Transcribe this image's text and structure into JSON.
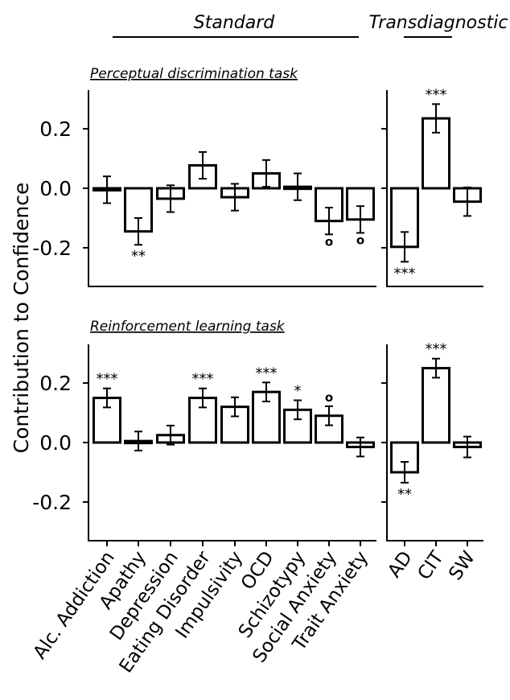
{
  "figure": {
    "group_standard": "Standard",
    "group_transdiagnostic": "Transdiagnostic",
    "ylabel": "Contribution to Confidence"
  },
  "chart_data": [
    {
      "type": "bar",
      "panel": "top",
      "title": "Perceptual discrimination task",
      "ylabel": "Contribution to Confidence",
      "ylim": [
        -0.33,
        0.33
      ],
      "yticks": [
        0.2,
        0.0,
        -0.2
      ],
      "ytick_labels": [
        "0.2",
        "0.0",
        "-0.2"
      ],
      "standard": {
        "categories": [
          "Alc. Addiction",
          "Apathy",
          "Depression",
          "Eating Disorder",
          "Impulsivity",
          "OCD",
          "Schizotypy",
          "Social Anxiety",
          "Trait Anxiety"
        ],
        "values": [
          -0.005,
          -0.145,
          -0.035,
          0.077,
          -0.03,
          0.05,
          0.005,
          -0.11,
          -0.105
        ],
        "errors": [
          0.045,
          0.045,
          0.045,
          0.045,
          0.045,
          0.045,
          0.045,
          0.045,
          0.045
        ],
        "annotations": [
          "",
          "**",
          "",
          "",
          "",
          "",
          "",
          "o",
          "o"
        ]
      },
      "transdiagnostic": {
        "categories": [
          "AD",
          "CIT",
          "SW"
        ],
        "values": [
          -0.197,
          0.235,
          -0.045
        ],
        "errors": [
          0.05,
          0.048,
          0.048
        ],
        "annotations": [
          "***",
          "***",
          ""
        ]
      }
    },
    {
      "type": "bar",
      "panel": "bottom",
      "title": "Reinforcement learning task",
      "ylabel": "Contribution to Confidence",
      "ylim": [
        -0.33,
        0.33
      ],
      "yticks": [
        0.2,
        0.0,
        -0.2
      ],
      "ytick_labels": [
        "0.2",
        "0.0",
        "-0.2"
      ],
      "standard": {
        "categories": [
          "Alc. Addiction",
          "Apathy",
          "Depression",
          "Eating Disorder",
          "Impulsivity",
          "OCD",
          "Schizotypy",
          "Social Anxiety",
          "Trait Anxiety"
        ],
        "values": [
          0.15,
          0.005,
          0.025,
          0.15,
          0.12,
          0.17,
          0.11,
          0.09,
          -0.015
        ],
        "errors": [
          0.032,
          0.032,
          0.032,
          0.032,
          0.032,
          0.032,
          0.032,
          0.032,
          0.032
        ],
        "annotations": [
          "***",
          "",
          "",
          "***",
          "",
          "***",
          "*",
          "o",
          ""
        ]
      },
      "transdiagnostic": {
        "categories": [
          "AD",
          "CIT",
          "SW"
        ],
        "values": [
          -0.1,
          0.25,
          -0.015
        ],
        "errors": [
          0.035,
          0.032,
          0.035
        ],
        "annotations": [
          "**",
          "***",
          ""
        ]
      }
    }
  ]
}
